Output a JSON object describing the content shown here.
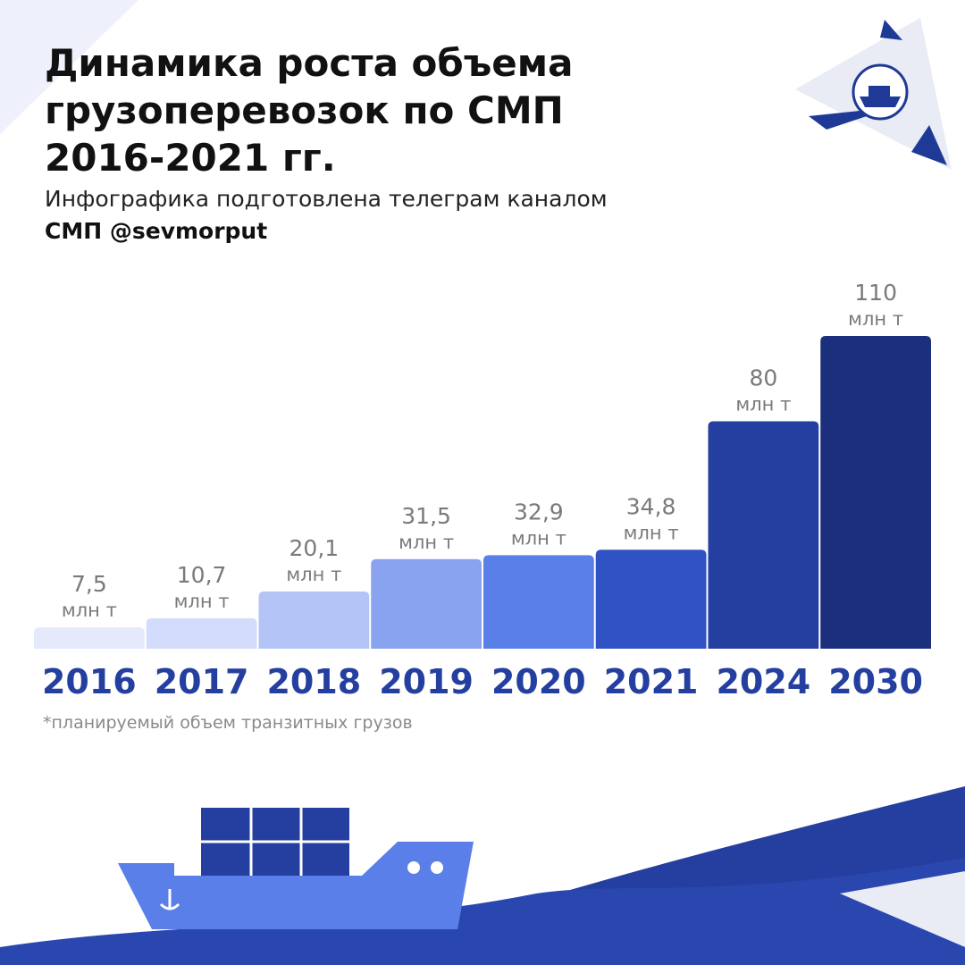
{
  "chart_data": {
    "type": "bar",
    "title": "Динамика роста объема грузоперевозок по СМП 2016-2021 гг.",
    "subtitle": "Инфографика подготовлена телеграм каналом",
    "source": "СМП @sevmorput",
    "unit": "млн т",
    "footnote": "*планируемый объем транзитных грузов",
    "categories": [
      "2016",
      "2017",
      "2018",
      "2019",
      "2020",
      "2021",
      "2024",
      "2030"
    ],
    "values": [
      7.5,
      10.7,
      20.1,
      31.5,
      32.9,
      34.8,
      80,
      110
    ],
    "value_labels": [
      "7,5",
      "10,7",
      "20,1",
      "31,5",
      "32,9",
      "34,8",
      "80",
      "110"
    ],
    "colors": [
      "#e4e9fb",
      "#d3dcfa",
      "#b5c4f7",
      "#8aa3f0",
      "#5b7fe9",
      "#3152c4",
      "#243f9f",
      "#1c2f7c"
    ]
  }
}
